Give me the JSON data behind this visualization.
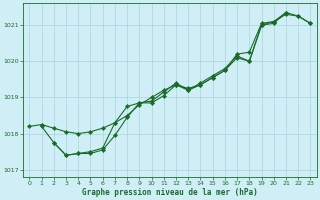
{
  "xlabel": "Graphe pression niveau de la mer (hPa)",
  "bg_color": "#d0eef5",
  "grid_color": "#a8d5e0",
  "line_color": "#1a6b2a",
  "ylim": [
    1016.8,
    1021.6
  ],
  "xlim": [
    -0.5,
    23.5
  ],
  "yticks": [
    1017,
    1018,
    1019,
    1020,
    1021
  ],
  "xticks": [
    0,
    1,
    2,
    3,
    4,
    5,
    6,
    7,
    8,
    9,
    10,
    11,
    12,
    13,
    14,
    15,
    16,
    17,
    18,
    19,
    20,
    21,
    22,
    23
  ],
  "line1_x": [
    0,
    1,
    2,
    3,
    4,
    5,
    6,
    7,
    8,
    9,
    10,
    11,
    12,
    13,
    14,
    15,
    16,
    17,
    18,
    19,
    20,
    21,
    22,
    23
  ],
  "line1_y": [
    1018.2,
    1018.25,
    1018.15,
    1018.05,
    1018.0,
    1018.05,
    1018.15,
    1018.3,
    1018.5,
    1018.8,
    1019.0,
    1019.2,
    1019.35,
    1019.25,
    1019.35,
    1019.55,
    1019.75,
    1020.2,
    1020.25,
    1021.05,
    1021.1,
    1021.3,
    1021.25,
    1021.05
  ],
  "line2_x": [
    1,
    2,
    3,
    4,
    5,
    6,
    7,
    8,
    9,
    10,
    11,
    12,
    13,
    14,
    15,
    16,
    17,
    18,
    19,
    20,
    21,
    22,
    23
  ],
  "line2_y": [
    1018.2,
    1017.75,
    1017.4,
    1017.45,
    1017.45,
    1017.55,
    1017.95,
    1018.45,
    1018.85,
    1018.9,
    1019.15,
    1019.4,
    1019.2,
    1019.4,
    1019.6,
    1019.8,
    1020.15,
    1020.0,
    1021.0,
    1021.1,
    1021.35,
    1021.25,
    1021.05
  ],
  "line3_x": [
    2,
    3,
    4,
    5,
    6,
    7,
    8,
    9,
    10,
    11,
    12,
    13,
    14,
    15,
    16,
    17,
    18,
    19,
    20,
    21
  ],
  "line3_y": [
    1017.75,
    1017.4,
    1017.45,
    1017.5,
    1017.6,
    1018.3,
    1018.75,
    1018.85,
    1018.85,
    1019.05,
    1019.35,
    1019.2,
    1019.35,
    1019.55,
    1019.75,
    1020.1,
    1020.0,
    1021.0,
    1021.05,
    1021.35
  ]
}
